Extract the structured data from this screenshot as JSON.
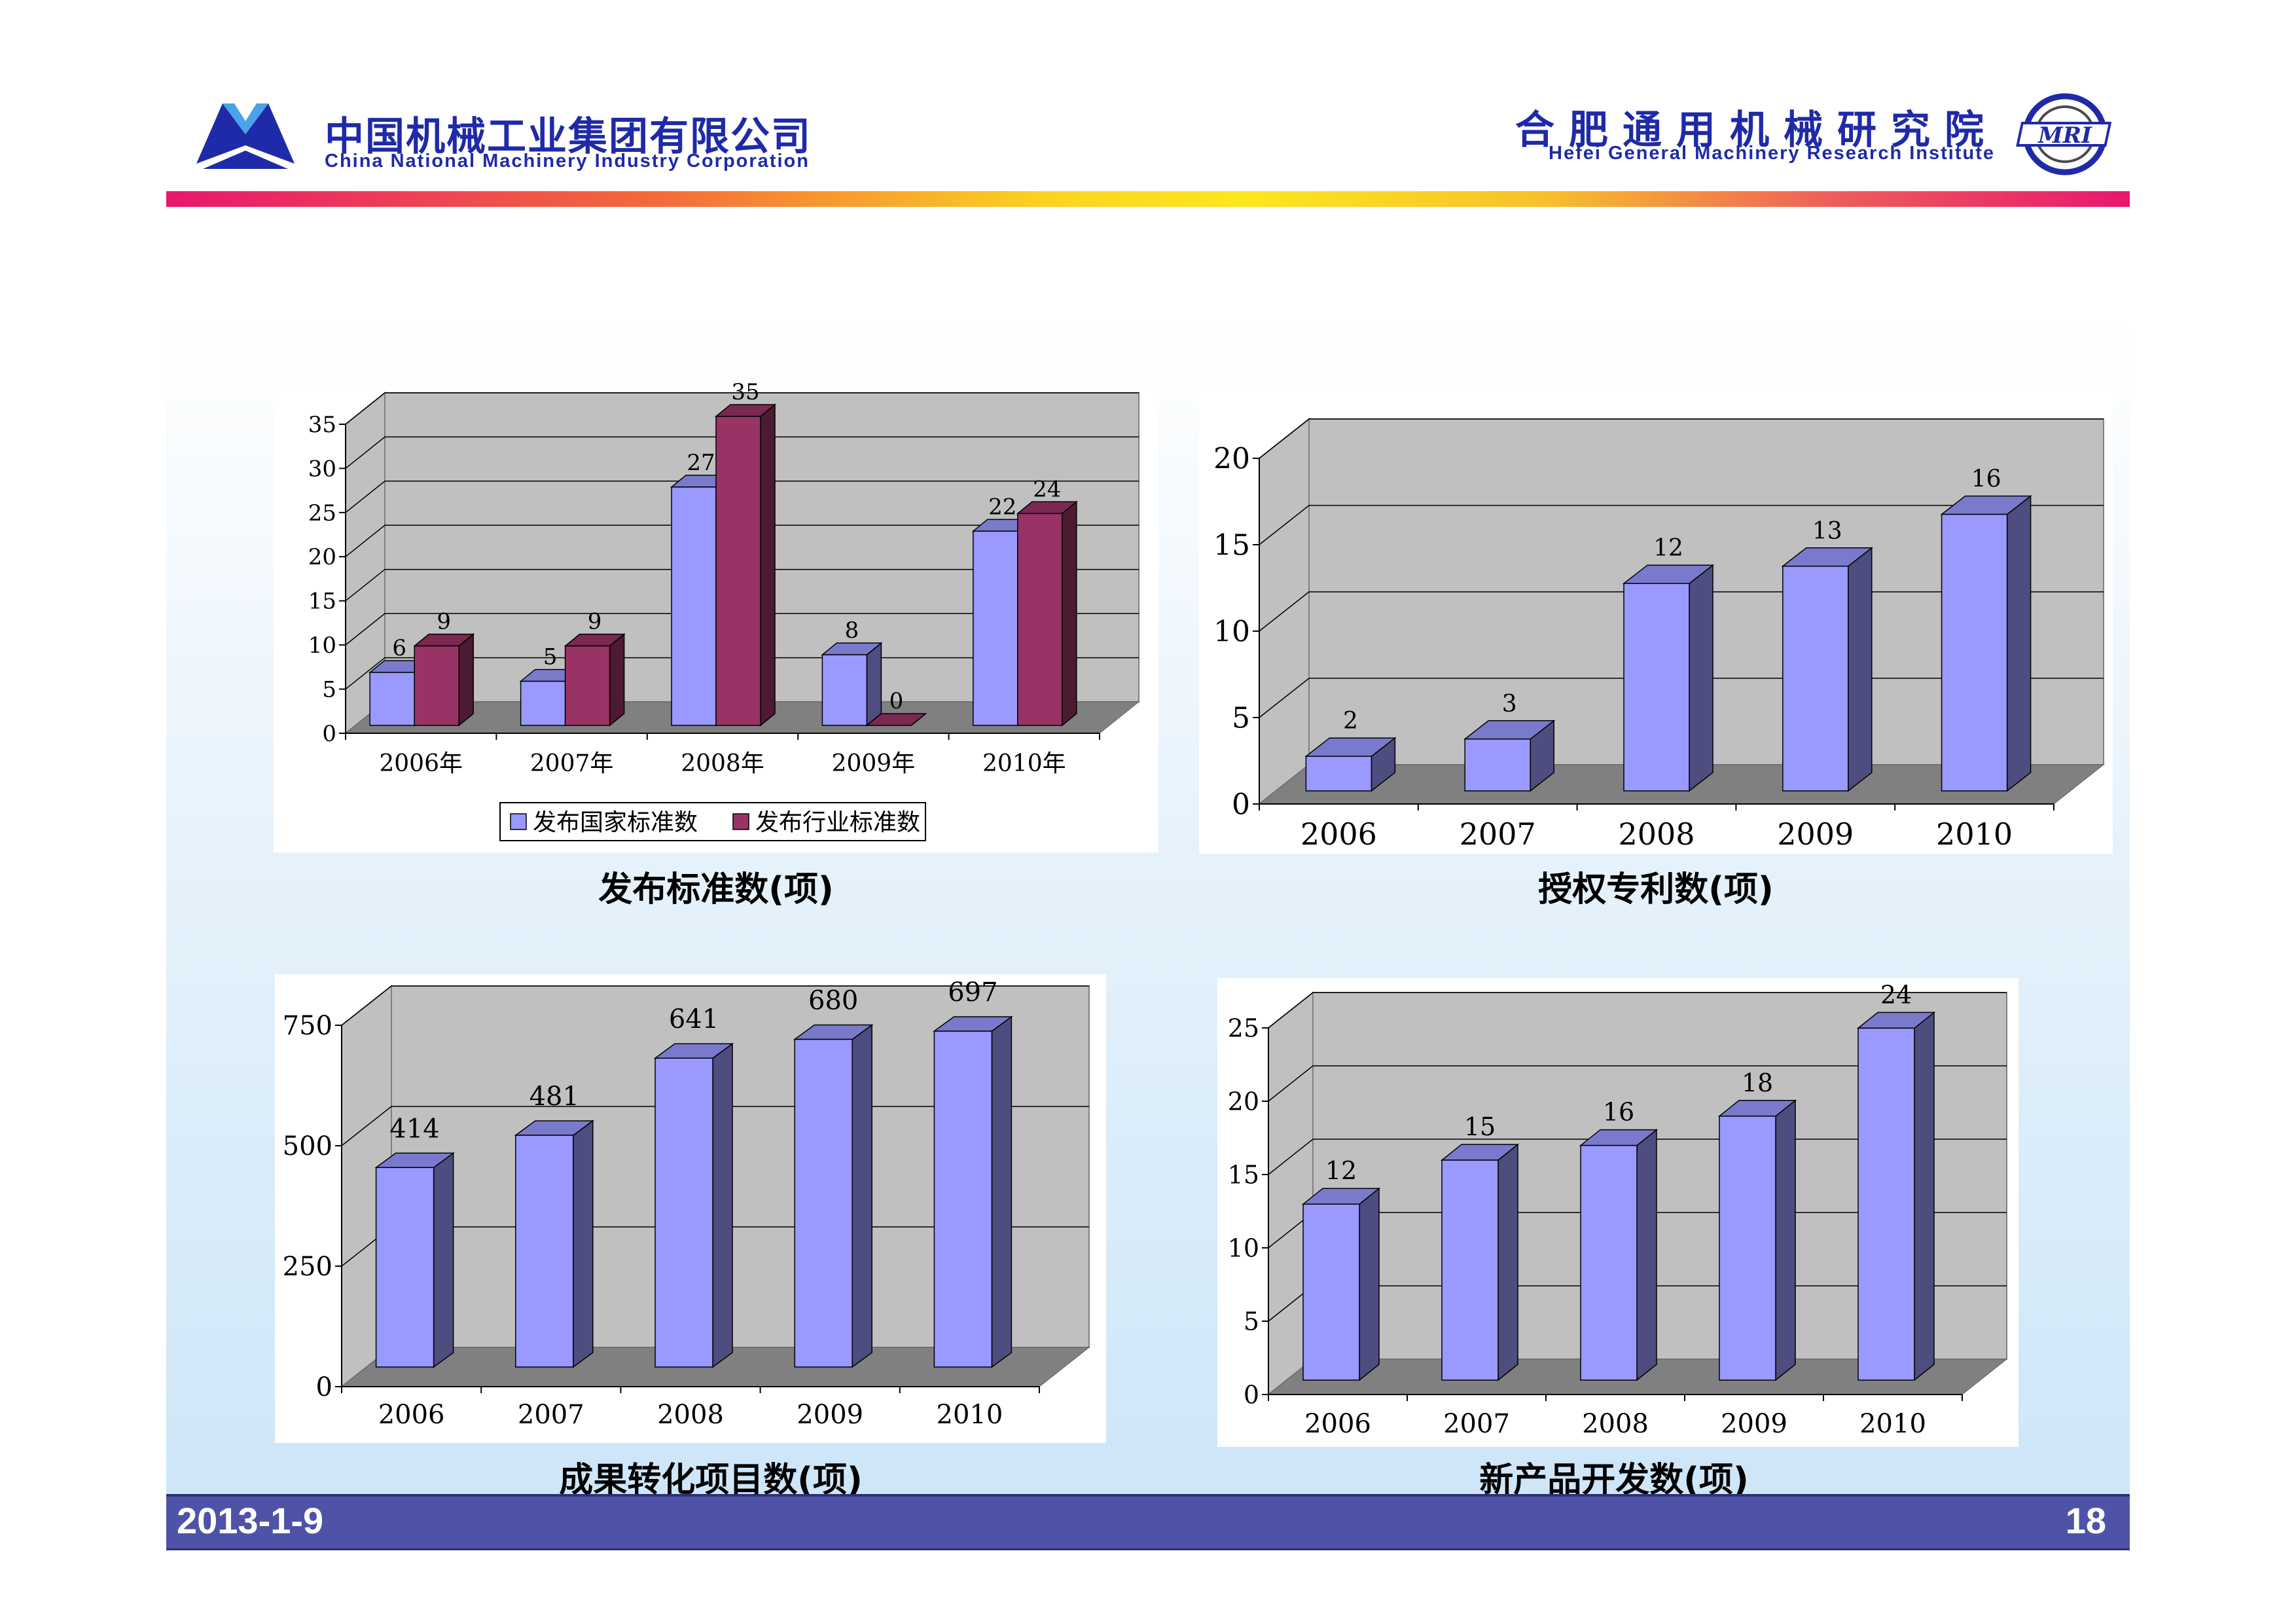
{
  "header": {
    "left_title": "中国机械工业集团有限公司",
    "left_subtitle": "China National Machinery Industry Corporation",
    "right_title": "合肥通用机械研究院",
    "right_subtitle": "Hefei General Machinery Research Institute",
    "right_logo_text": "MRI"
  },
  "footer": {
    "date": "2013-1-9",
    "page": "18"
  },
  "colors": {
    "blue_bar": "#9999ff",
    "maroon_bar": "#993366",
    "wall": "#c0c0c0",
    "floor": "#808080",
    "brand": "#1f2aa8"
  },
  "captions": {
    "standards": "发布标准数(项)",
    "patents": "授权专利数(项)",
    "achievements": "成果转化项目数(项)",
    "new_products": "新产品开发数(项)"
  },
  "chart_data": [
    {
      "type": "bar",
      "categories": [
        "2006年",
        "2007年",
        "2008年",
        "2009年",
        "2010年"
      ],
      "series": [
        {
          "name": "发布国家标准数",
          "values": [
            6,
            5,
            27,
            8,
            22
          ]
        },
        {
          "name": "发布行业标准数",
          "values": [
            9,
            9,
            35,
            0,
            24
          ]
        }
      ],
      "ylim": [
        0,
        35
      ],
      "yticks": [
        0,
        5,
        10,
        15,
        20,
        25,
        30,
        35
      ],
      "legend": "bottom",
      "grid": true
    },
    {
      "type": "bar",
      "categories": [
        "2006",
        "2007",
        "2008",
        "2009",
        "2010"
      ],
      "series": [
        {
          "values": [
            2,
            3,
            12,
            13,
            16
          ]
        }
      ],
      "ylim": [
        0,
        20
      ],
      "yticks": [
        0,
        5,
        10,
        15,
        20
      ],
      "grid": true
    },
    {
      "type": "bar",
      "categories": [
        "2006",
        "2007",
        "2008",
        "2009",
        "2010"
      ],
      "series": [
        {
          "values": [
            414,
            481,
            641,
            680,
            697
          ]
        }
      ],
      "ylim": [
        0,
        750
      ],
      "yticks": [
        0,
        250,
        500,
        750
      ],
      "grid": true
    },
    {
      "type": "bar",
      "categories": [
        "2006",
        "2007",
        "2008",
        "2009",
        "2010"
      ],
      "series": [
        {
          "values": [
            12,
            15,
            16,
            18,
            24
          ]
        }
      ],
      "ylim": [
        0,
        25
      ],
      "yticks": [
        0,
        5,
        10,
        15,
        20,
        25
      ],
      "grid": true
    }
  ]
}
